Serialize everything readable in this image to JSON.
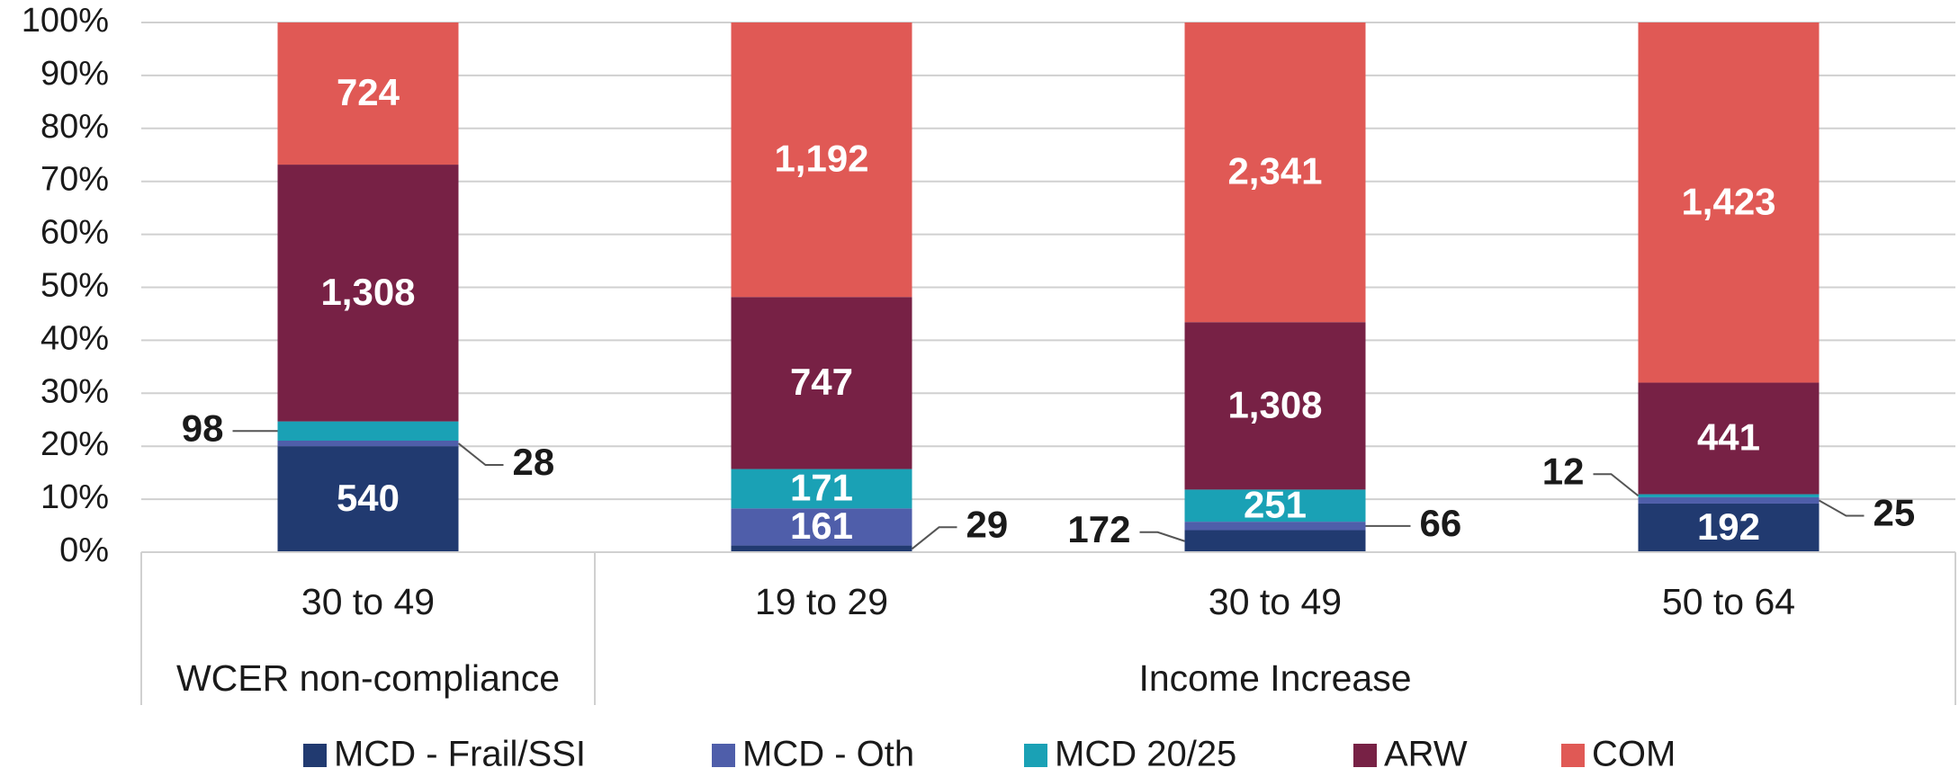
{
  "chart_data": {
    "type": "bar",
    "stacking": "percent",
    "groups": [
      {
        "name": "WCER non-compliance",
        "categories": [
          "30 to 49"
        ]
      },
      {
        "name": "Income Increase",
        "categories": [
          "19 to 29",
          "30 to 49",
          "50 to 64"
        ]
      }
    ],
    "series": [
      {
        "name": "MCD - Frail/SSI",
        "color": "#213a70",
        "values": [
          540,
          29,
          172,
          192
        ]
      },
      {
        "name": "MCD - Oth",
        "color": "#4f5eaa",
        "values": [
          28,
          161,
          66,
          25
        ]
      },
      {
        "name": "MCD 20/25",
        "color": "#1aa1b5",
        "values": [
          98,
          171,
          251,
          12
        ]
      },
      {
        "name": "ARW",
        "color": "#772145",
        "values": [
          1308,
          747,
          1308,
          441
        ],
        "value_labels": [
          "1,308",
          "747",
          "1,308",
          "441"
        ]
      },
      {
        "name": "COM",
        "color": "#e05955",
        "values": [
          724,
          1192,
          2341,
          1423
        ],
        "value_labels": [
          "724",
          "1,192",
          "2,341",
          "1,423"
        ]
      }
    ],
    "ylim": [
      0,
      100
    ],
    "yticks": [
      {
        "value": 0,
        "label": "0%"
      },
      {
        "value": 10,
        "label": "10%"
      },
      {
        "value": 20,
        "label": "20%"
      },
      {
        "value": 30,
        "label": "30%"
      },
      {
        "value": 40,
        "label": "40%"
      },
      {
        "value": 50,
        "label": "50%"
      },
      {
        "value": 60,
        "label": "60%"
      },
      {
        "value": 70,
        "label": "70%"
      },
      {
        "value": 80,
        "label": "80%"
      },
      {
        "value": 90,
        "label": "90%"
      },
      {
        "value": 100,
        "label": "100%"
      }
    ],
    "grid": true,
    "legend": "bottom"
  }
}
